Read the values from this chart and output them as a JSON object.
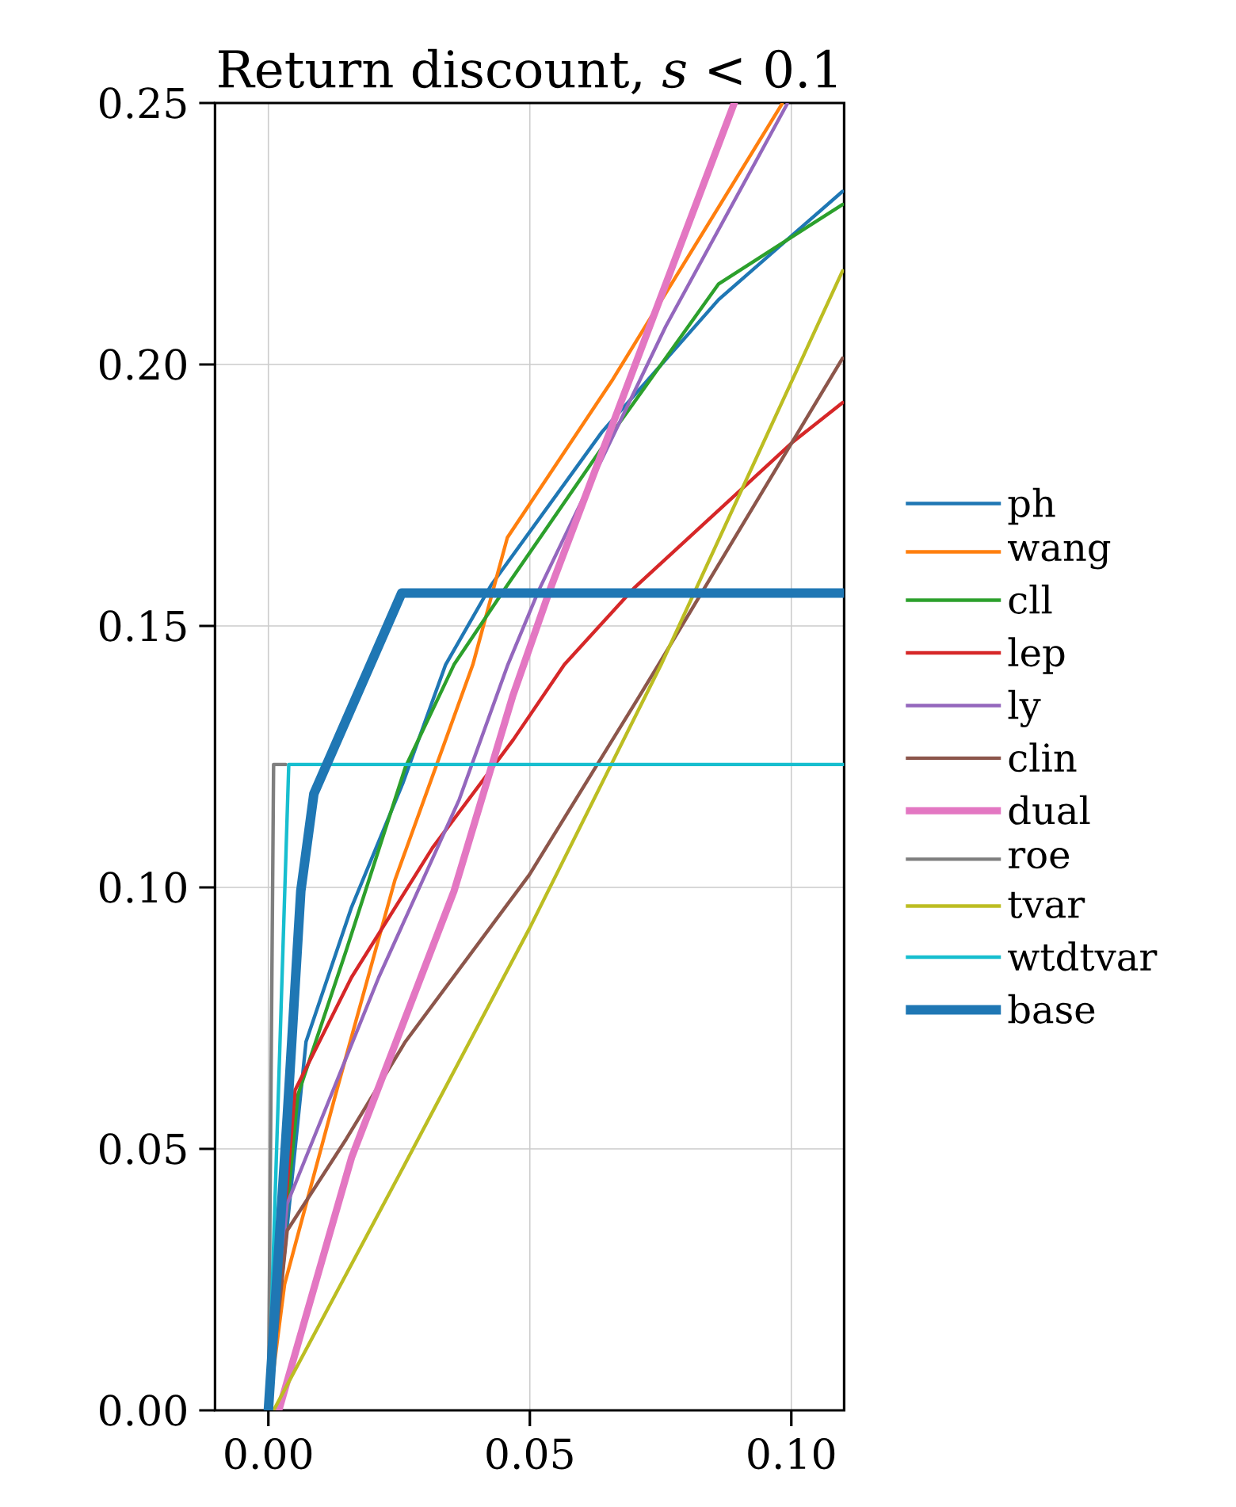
{
  "chart_data": {
    "type": "line",
    "title": "Return discount, *s* < 0.1",
    "xlim": [
      -0.0102,
      0.1101
    ],
    "ylim": [
      0,
      0.25
    ],
    "xticks": [
      {
        "value": 0,
        "label": "0.00"
      },
      {
        "value": 0.05,
        "label": "0.05"
      },
      {
        "value": 0.1,
        "label": "0.10"
      }
    ],
    "yticks": [
      {
        "value": 0,
        "label": "0.00"
      },
      {
        "value": 0.05,
        "label": "0.05"
      },
      {
        "value": 0.1,
        "label": "0.10"
      },
      {
        "value": 0.15,
        "label": "0.15"
      },
      {
        "value": 0.2,
        "label": "0.20"
      },
      {
        "value": 0.25,
        "label": "0.25"
      }
    ],
    "grid": true,
    "legend": "right",
    "marker": "none",
    "line_style": "solid",
    "series": [
      {
        "name": "ph",
        "color": "#1f77b4",
        "x": [
          0,
          0.0072,
          0.0159,
          0.0257,
          0.0339,
          0.0426,
          0.0638,
          0.0861,
          0.1098
        ],
        "values": [
          0,
          0.0705,
          0.0962,
          0.1199,
          0.1426,
          0.1578,
          0.1871,
          0.2124,
          0.2331
        ]
      },
      {
        "name": "wang",
        "color": "#ff7f0e",
        "x": [
          0,
          0.0031,
          0.0128,
          0.0242,
          0.0391,
          0.0457,
          0.0659,
          0.0982
        ],
        "values": [
          0,
          0.0241,
          0.0602,
          0.1014,
          0.1426,
          0.1669,
          0.1972,
          0.2498
        ]
      },
      {
        "name": "cll",
        "color": "#2ca02c",
        "x": [
          0,
          0.0056,
          0.0149,
          0.0262,
          0.0355,
          0.0457,
          0.0659,
          0.0861,
          0.1098
        ],
        "values": [
          0,
          0.0602,
          0.088,
          0.123,
          0.1426,
          0.1578,
          0.1871,
          0.2154,
          0.2306
        ]
      },
      {
        "name": "lep",
        "color": "#d62728",
        "x": [
          0,
          0.0051,
          0.0159,
          0.0314,
          0.0468,
          0.0566,
          0.0699,
          0.1002,
          0.1098
        ],
        "values": [
          0,
          0.0612,
          0.0828,
          0.1076,
          0.1282,
          0.1426,
          0.1572,
          0.1851,
          0.1927
        ]
      },
      {
        "name": "ly",
        "color": "#9467bd",
        "x": [
          0,
          0.0036,
          0.0211,
          0.0365,
          0.0458,
          0.0517,
          0.076,
          0.0992
        ],
        "values": [
          0,
          0.0395,
          0.0828,
          0.1168,
          0.1426,
          0.1568,
          0.2073,
          0.2498
        ]
      },
      {
        "name": "clin",
        "color": "#8c564b",
        "x": [
          0,
          0.0036,
          0.0149,
          0.0262,
          0.0499,
          0.0709,
          0.0746,
          0.1098
        ],
        "values": [
          0,
          0.0344,
          0.0519,
          0.0705,
          0.1024,
          0.1365,
          0.1426,
          0.2012
        ]
      },
      {
        "name": "dual",
        "color": "#e377c2",
        "x": [
          0.002,
          0.0159,
          0.0355,
          0.0467,
          0.0538,
          0.0891
        ],
        "values": [
          0,
          0.0483,
          0.0993,
          0.1365,
          0.1568,
          0.25
        ]
      },
      {
        "name": "roe",
        "color": "#7f7f7f",
        "x": [
          0,
          0.001,
          0.0033
        ],
        "values": [
          0,
          0.1235,
          0.1235
        ]
      },
      {
        "name": "tvar",
        "color": "#bcbd22",
        "x": [
          0.001,
          0.025,
          0.0499,
          0.0751,
          0.1098
        ],
        "values": [
          0,
          0.045,
          0.0921,
          0.1426,
          0.2179
        ]
      },
      {
        "name": "wtdtvar",
        "color": "#17becf",
        "x": [
          0,
          0.0039,
          0.1101
        ],
        "values": [
          0,
          0.1235,
          0.1235
        ]
      },
      {
        "name": "base",
        "color": "#1f77b4",
        "x": [
          0,
          0.0036,
          0.0062,
          0.0087,
          0.0255,
          0.1101
        ],
        "values": [
          0,
          0.056,
          0.0993,
          0.1179,
          0.1563,
          0.1563
        ]
      }
    ]
  }
}
